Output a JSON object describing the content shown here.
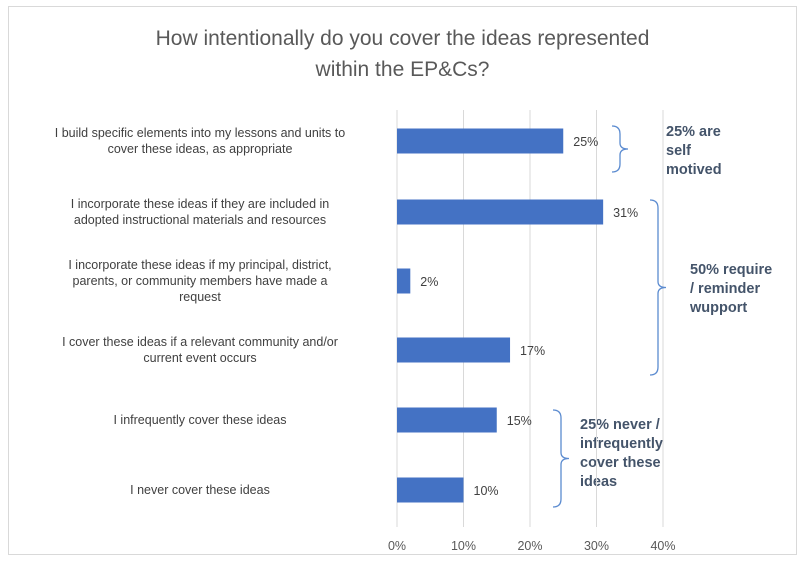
{
  "chart_data": {
    "type": "bar",
    "orientation": "horizontal",
    "title": "How intentionally do you cover the ideas represented within the EP&Cs?",
    "title_lines": [
      "How intentionally do you cover the ideas represented",
      "within the EP&Cs?"
    ],
    "categories": [
      [
        "I build specific elements into my lessons and units to",
        "cover these ideas, as appropriate"
      ],
      [
        "I incorporate these ideas if they are included in",
        "adopted instructional materials and resources"
      ],
      [
        "I incorporate these ideas if my principal, district,",
        "parents, or community members have made a",
        "request"
      ],
      [
        "I cover these ideas if a relevant community and/or",
        "current event occurs"
      ],
      [
        "I infrequently cover these ideas"
      ],
      [
        "I never cover these ideas"
      ]
    ],
    "values": [
      25,
      31,
      2,
      17,
      15,
      10
    ],
    "data_labels": [
      "25%",
      "31%",
      "2%",
      "17%",
      "15%",
      "10%"
    ],
    "xlim": [
      0,
      40
    ],
    "x_ticks": [
      "0%",
      "10%",
      "20%",
      "30%",
      "40%"
    ],
    "grid": "vertical",
    "bar_color": "#4472c4",
    "annotations": [
      {
        "lines": [
          "25% are",
          "self",
          "motived"
        ],
        "spans": [
          0,
          0
        ]
      },
      {
        "lines": [
          "50% require",
          "/ reminder",
          "wupport"
        ],
        "spans": [
          1,
          3
        ]
      },
      {
        "lines": [
          "25% never /",
          "infrequently",
          "cover these",
          "ideas"
        ],
        "spans": [
          4,
          5
        ]
      }
    ]
  }
}
